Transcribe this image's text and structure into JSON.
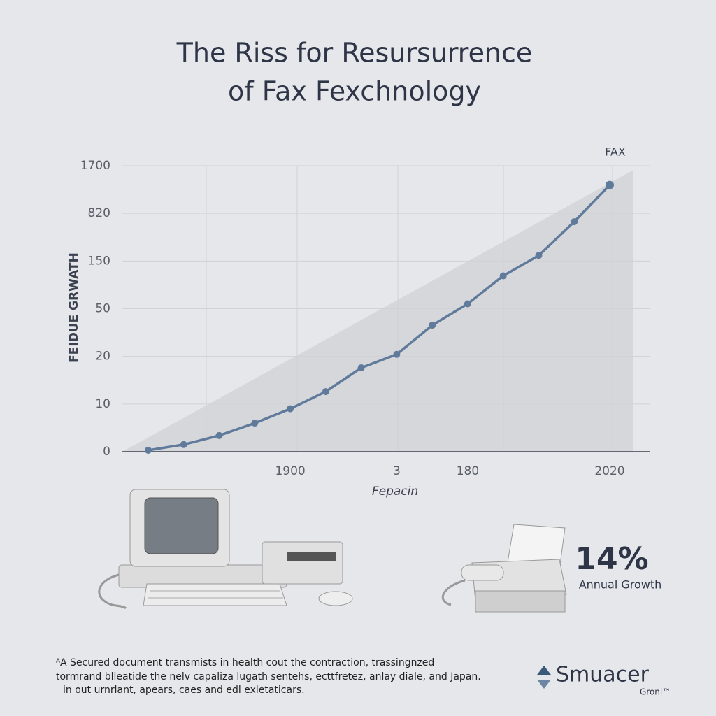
{
  "chart_data": {
    "type": "line",
    "title": [
      "The Riss for Resursurrence",
      "of Fax Fexchnology"
    ],
    "y_label": "FEIDUE GRWATH",
    "x_label": "Fepacin",
    "categories": [
      null,
      null,
      null,
      null,
      "1900",
      null,
      null,
      "3",
      null,
      "180",
      null,
      null,
      null,
      "2020"
    ],
    "series": [
      {
        "name": "FAX",
        "color": "#5f7a9a",
        "values": [
          0.3,
          1.5,
          3.4,
          6,
          9,
          12.6,
          17.6,
          21.3,
          39.6,
          60.3,
          119,
          228,
          703,
          1343
        ]
      }
    ],
    "ylim": [
      0,
      1700
    ],
    "yticks": [
      0,
      10,
      20,
      50,
      150,
      820,
      1700
    ],
    "grid": true
  },
  "callout": {
    "value": "14%",
    "label": "Annual Growth"
  },
  "footer": [
    "ᴬA Secured document transmists in health cout the contraction, trassingnzed",
    "tormrand blleatide the nelv capaliza lugath sentehs, ecttfretez, anlay diale, and Japan.",
    "in out urnrlant, apears, caes and edl exletaticars."
  ],
  "logo": {
    "name": "Smuacer",
    "sub": "Gronl™"
  }
}
